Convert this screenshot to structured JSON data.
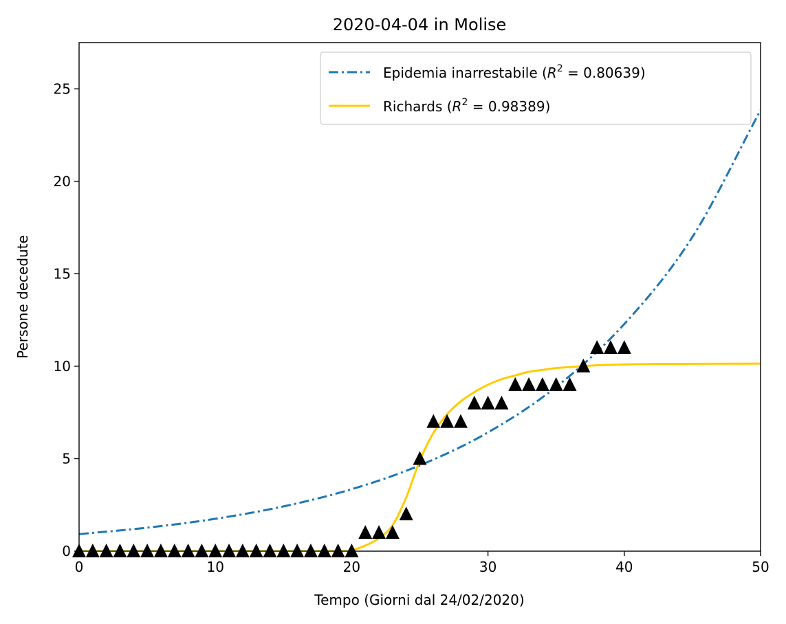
{
  "chart_data": {
    "type": "scatter",
    "title": "2020-04-04 in Molise",
    "xlabel": "Tempo (Giorni dal 24/02/2020)",
    "ylabel": "Persone decedute",
    "xlim": [
      0,
      50
    ],
    "ylim": [
      0,
      27.5
    ],
    "xticks": [
      0,
      10,
      20,
      30,
      40,
      50
    ],
    "yticks": [
      0,
      5,
      10,
      15,
      20,
      25
    ],
    "grid": false,
    "legend_position": "top-right",
    "observed": {
      "marker": "triangle",
      "color": "#000000",
      "x": [
        0,
        1,
        2,
        3,
        4,
        5,
        6,
        7,
        8,
        9,
        10,
        11,
        12,
        13,
        14,
        15,
        16,
        17,
        18,
        19,
        20,
        21,
        22,
        23,
        24,
        25,
        26,
        27,
        28,
        29,
        30,
        31,
        32,
        33,
        34,
        35,
        36,
        37,
        38,
        39,
        40
      ],
      "y": [
        0,
        0,
        0,
        0,
        0,
        0,
        0,
        0,
        0,
        0,
        0,
        0,
        0,
        0,
        0,
        0,
        0,
        0,
        0,
        0,
        0,
        1,
        1,
        1,
        2,
        5,
        7,
        7,
        7,
        8,
        8,
        8,
        9,
        9,
        9,
        9,
        9,
        10,
        11,
        11,
        11
      ]
    },
    "series": [
      {
        "name": "Epidemia inarrestabile",
        "r2": "0.80639",
        "style": "dashdot",
        "color": "#1f77b4",
        "model": "exponential",
        "x": [
          0,
          5,
          10,
          15,
          20,
          25,
          30,
          35,
          40,
          45,
          50
        ],
        "y": [
          0.92,
          1.27,
          1.75,
          2.42,
          3.35,
          4.64,
          6.42,
          8.88,
          12.28,
          16.99,
          23.85
        ]
      },
      {
        "name": "Richards",
        "r2": "0.98389",
        "style": "solid",
        "color": "#ffcc00",
        "model": "sigmoid",
        "x": [
          0,
          19.5,
          20,
          21,
          22,
          23,
          24,
          25,
          26,
          27,
          28,
          29,
          30,
          31,
          32,
          33,
          34,
          35,
          36,
          37,
          38,
          40,
          42,
          45,
          50
        ],
        "y": [
          0,
          0,
          0.05,
          0.3,
          0.7,
          1.4,
          2.9,
          4.9,
          6.4,
          7.4,
          8.1,
          8.6,
          9.0,
          9.3,
          9.5,
          9.7,
          9.8,
          9.9,
          9.95,
          10.0,
          10.05,
          10.1,
          10.12,
          10.13,
          10.14
        ]
      }
    ]
  }
}
